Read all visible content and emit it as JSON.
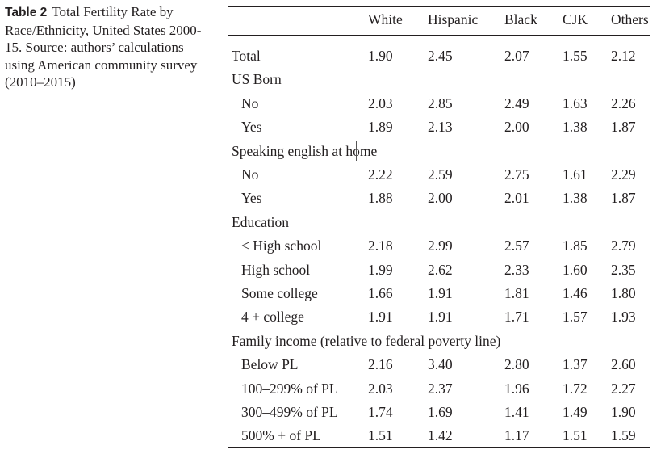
{
  "caption": {
    "label": "Table 2",
    "text": "Total Fertility Rate by Race/Ethnicity, United States 2000-15. Source: authors’ calculations using American community survey (2010–2015)"
  },
  "table": {
    "columns": [
      "White",
      "Hispanic",
      "Black",
      "CJK",
      "Others"
    ],
    "rows": [
      {
        "label": "Total",
        "values": [
          "1.90",
          "2.45",
          "2.07",
          "1.55",
          "2.12"
        ]
      },
      {
        "label": "US Born",
        "values": []
      },
      {
        "label": "No",
        "indent": true,
        "values": [
          "2.03",
          "2.85",
          "2.49",
          "1.63",
          "2.26"
        ]
      },
      {
        "label": "Yes",
        "indent": true,
        "values": [
          "1.89",
          "2.13",
          "2.00",
          "1.38",
          "1.87"
        ]
      },
      {
        "label": "Speaking english at home",
        "values": []
      },
      {
        "label": "No",
        "indent": true,
        "values": [
          "2.22",
          "2.59",
          "2.75",
          "1.61",
          "2.29"
        ]
      },
      {
        "label": "Yes",
        "indent": true,
        "values": [
          "1.88",
          "2.00",
          "2.01",
          "1.38",
          "1.87"
        ]
      },
      {
        "label": "Education",
        "values": []
      },
      {
        "label": "< High school",
        "indent": true,
        "values": [
          "2.18",
          "2.99",
          "2.57",
          "1.85",
          "2.79"
        ]
      },
      {
        "label": "High school",
        "indent": true,
        "values": [
          "1.99",
          "2.62",
          "2.33",
          "1.60",
          "2.35"
        ]
      },
      {
        "label": "Some college",
        "indent": true,
        "values": [
          "1.66",
          "1.91",
          "1.81",
          "1.46",
          "1.80"
        ]
      },
      {
        "label": "4 + college",
        "indent": true,
        "values": [
          "1.91",
          "1.91",
          "1.71",
          "1.57",
          "1.93"
        ]
      },
      {
        "label": "Family income (relative to federal poverty line)",
        "values": []
      },
      {
        "label": "Below PL",
        "indent": true,
        "values": [
          "2.16",
          "3.40",
          "2.80",
          "1.37",
          "2.60"
        ]
      },
      {
        "label": "100–299% of PL",
        "indent": true,
        "values": [
          "2.03",
          "2.37",
          "1.96",
          "1.72",
          "2.27"
        ]
      },
      {
        "label": "300–499% of PL",
        "indent": true,
        "values": [
          "1.74",
          "1.69",
          "1.41",
          "1.49",
          "1.90"
        ]
      },
      {
        "label": "500% + of PL",
        "indent": true,
        "values": [
          "1.51",
          "1.42",
          "1.17",
          "1.51",
          "1.59"
        ]
      }
    ]
  }
}
